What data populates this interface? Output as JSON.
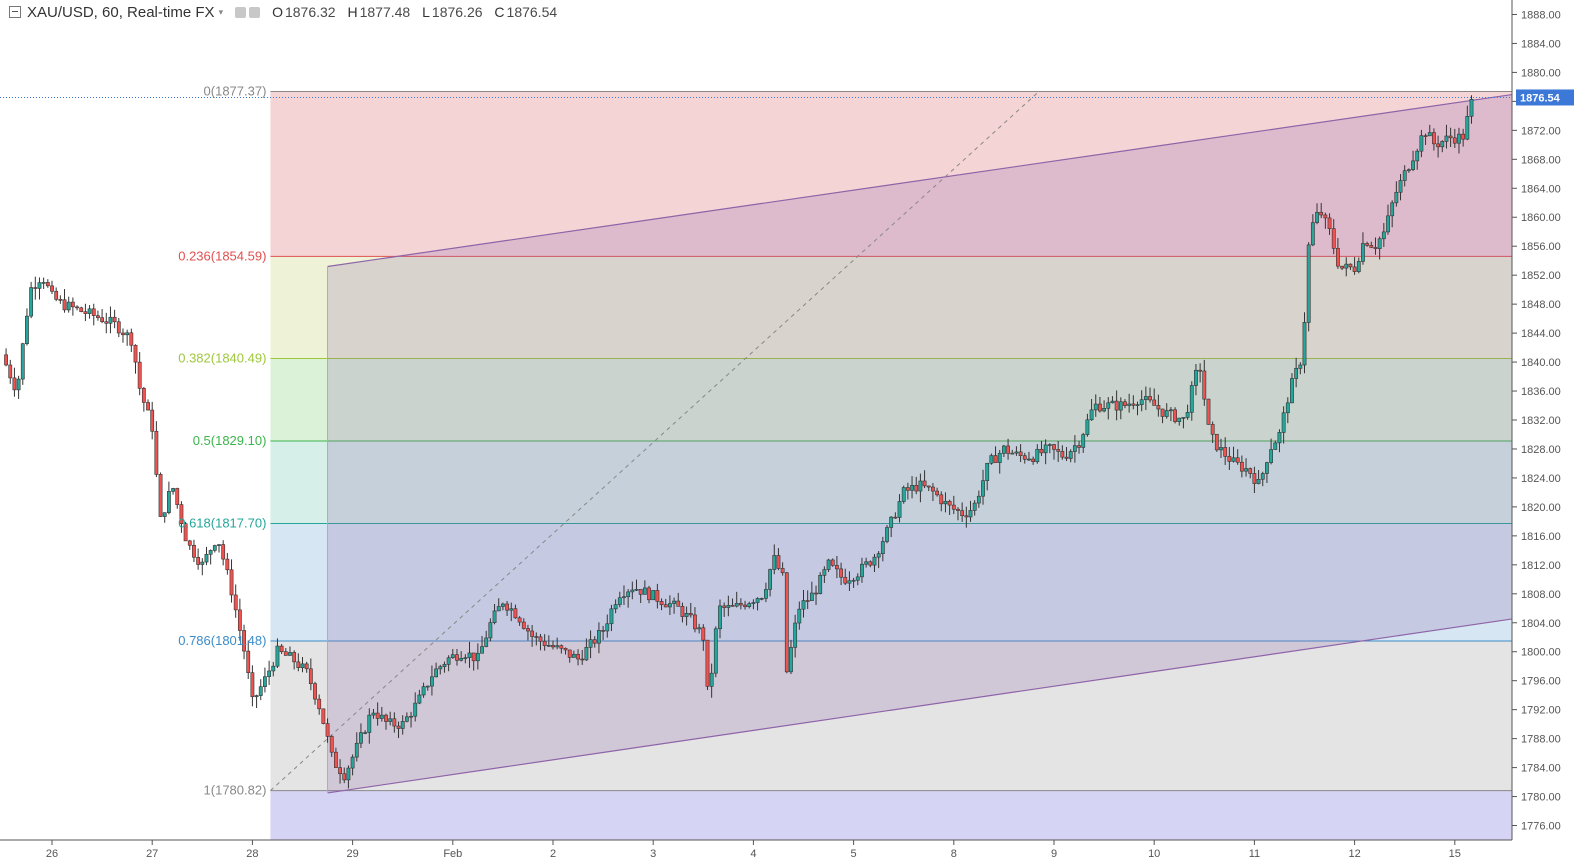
{
  "header": {
    "symbol": "XAU/USD, 60, Real-time FX",
    "ohlc": [
      {
        "key": "O",
        "value": "1876.32"
      },
      {
        "key": "H",
        "value": "1877.48"
      },
      {
        "key": "L",
        "value": "1876.26"
      },
      {
        "key": "C",
        "value": "1876.54"
      }
    ]
  },
  "colors": {
    "up": "#26a69a",
    "down": "#ef5350",
    "axis_text": "#555555",
    "last_price_bg": "#3c78d8",
    "channel": "#8e63a8"
  },
  "chart_data": {
    "type": "candlestick",
    "instrument": "XAU/USD",
    "timeframe": "60",
    "ylim": [
      1774,
      1890
    ],
    "y_ticks": [
      1776,
      1780,
      1784,
      1788,
      1792,
      1796,
      1800,
      1804,
      1808,
      1812,
      1816,
      1820,
      1824,
      1828,
      1832,
      1836,
      1840,
      1844,
      1848,
      1852,
      1856,
      1860,
      1864,
      1868,
      1872,
      1876,
      1880,
      1884,
      1888
    ],
    "x_ticks": [
      {
        "label": "26",
        "pos": 0.5
      },
      {
        "label": "27",
        "pos": 1.5
      },
      {
        "label": "28",
        "pos": 2.5
      },
      {
        "label": "29",
        "pos": 3.5
      },
      {
        "label": "Feb",
        "pos": 4.5
      },
      {
        "label": "2",
        "pos": 5.5
      },
      {
        "label": "3",
        "pos": 6.5
      },
      {
        "label": "4",
        "pos": 7.5
      },
      {
        "label": "5",
        "pos": 8.5
      },
      {
        "label": "8",
        "pos": 9.5
      },
      {
        "label": "9",
        "pos": 10.5
      },
      {
        "label": "10",
        "pos": 11.5
      },
      {
        "label": "11",
        "pos": 12.5
      },
      {
        "label": "12",
        "pos": 13.5
      },
      {
        "label": "15",
        "pos": 14.5
      }
    ],
    "last_price": 1876.54,
    "last_price_label": "1876.54",
    "fibonacci": {
      "high": 1877.37,
      "low": 1780.82,
      "start_x": 2.68,
      "end_x": 15.6,
      "levels": [
        {
          "label": "0(1877.37)",
          "price": 1877.37,
          "color": "#888888"
        },
        {
          "label": "0.236(1854.59)",
          "price": 1854.59,
          "color": "#e05050"
        },
        {
          "label": "0.382(1840.49)",
          "price": 1840.49,
          "color": "#9ec83c"
        },
        {
          "label": "0.5(1829.10)",
          "price": 1829.1,
          "color": "#3cb44b"
        },
        {
          "label": "0.618(1817.70)",
          "price": 1817.7,
          "color": "#26a69a"
        },
        {
          "label": "0.786(1801.48)",
          "price": 1801.48,
          "color": "#3c8cc8"
        },
        {
          "label": "1(1780.82)",
          "price": 1780.82,
          "color": "#888888"
        }
      ]
    },
    "channel": {
      "upper": [
        {
          "x": 3.25,
          "y": 1853.2
        },
        {
          "x": 15.6,
          "y": 1878.0
        }
      ],
      "lower": [
        {
          "x": 3.25,
          "y": 1780.5
        },
        {
          "x": 15.6,
          "y": 1805.6
        }
      ]
    },
    "trend_dashed": [
      {
        "x": 2.68,
        "y": 1780.82
      },
      {
        "x": 10.35,
        "y": 1877.37
      }
    ],
    "price_path": [
      [
        0.0,
        1841
      ],
      [
        0.15,
        1836
      ],
      [
        0.28,
        1850
      ],
      [
        0.4,
        1852
      ],
      [
        0.5,
        1849
      ],
      [
        0.6,
        1848
      ],
      [
        0.8,
        1847
      ],
      [
        1.0,
        1846
      ],
      [
        1.15,
        1845
      ],
      [
        1.3,
        1843
      ],
      [
        1.38,
        1836
      ],
      [
        1.5,
        1831
      ],
      [
        1.58,
        1818
      ],
      [
        1.7,
        1823
      ],
      [
        1.85,
        1815
      ],
      [
        2.0,
        1812
      ],
      [
        2.15,
        1816
      ],
      [
        2.3,
        1808
      ],
      [
        2.42,
        1800
      ],
      [
        2.5,
        1793
      ],
      [
        2.62,
        1796
      ],
      [
        2.75,
        1800
      ],
      [
        2.9,
        1799
      ],
      [
        3.05,
        1797
      ],
      [
        3.18,
        1792
      ],
      [
        3.3,
        1785
      ],
      [
        3.42,
        1783
      ],
      [
        3.55,
        1787
      ],
      [
        3.7,
        1792
      ],
      [
        3.85,
        1790
      ],
      [
        4.0,
        1790
      ],
      [
        4.15,
        1793
      ],
      [
        4.3,
        1797
      ],
      [
        4.45,
        1799
      ],
      [
        4.6,
        1800
      ],
      [
        4.75,
        1799
      ],
      [
        4.88,
        1804
      ],
      [
        5.0,
        1807
      ],
      [
        5.15,
        1805
      ],
      [
        5.3,
        1802
      ],
      [
        5.45,
        1801
      ],
      [
        5.6,
        1800
      ],
      [
        5.75,
        1799
      ],
      [
        5.88,
        1801
      ],
      [
        6.0,
        1803
      ],
      [
        6.15,
        1808
      ],
      [
        6.3,
        1809
      ],
      [
        6.45,
        1808
      ],
      [
        6.6,
        1807
      ],
      [
        6.75,
        1806
      ],
      [
        6.9,
        1804
      ],
      [
        7.0,
        1802
      ],
      [
        7.05,
        1793
      ],
      [
        7.15,
        1806
      ],
      [
        7.3,
        1806
      ],
      [
        7.45,
        1807
      ],
      [
        7.6,
        1808
      ],
      [
        7.7,
        1813
      ],
      [
        7.8,
        1810
      ],
      [
        7.83,
        1797
      ],
      [
        7.95,
        1806
      ],
      [
        8.1,
        1808
      ],
      [
        8.25,
        1812
      ],
      [
        8.4,
        1810
      ],
      [
        8.55,
        1811
      ],
      [
        8.7,
        1813
      ],
      [
        8.85,
        1817
      ],
      [
        9.0,
        1822
      ],
      [
        9.15,
        1823
      ],
      [
        9.3,
        1822
      ],
      [
        9.45,
        1820
      ],
      [
        9.6,
        1819
      ],
      [
        9.7,
        1820
      ],
      [
        9.85,
        1826
      ],
      [
        10.0,
        1828
      ],
      [
        10.15,
        1827
      ],
      [
        10.3,
        1827
      ],
      [
        10.45,
        1828
      ],
      [
        10.6,
        1827
      ],
      [
        10.75,
        1829
      ],
      [
        10.9,
        1834
      ],
      [
        11.05,
        1834
      ],
      [
        11.2,
        1834
      ],
      [
        11.35,
        1835
      ],
      [
        11.5,
        1834
      ],
      [
        11.6,
        1833
      ],
      [
        11.8,
        1832
      ],
      [
        11.95,
        1840
      ],
      [
        12.05,
        1830
      ],
      [
        12.15,
        1828
      ],
      [
        12.3,
        1826
      ],
      [
        12.45,
        1825
      ],
      [
        12.55,
        1823
      ],
      [
        12.65,
        1828
      ],
      [
        12.75,
        1830
      ],
      [
        12.85,
        1836
      ],
      [
        12.98,
        1841
      ],
      [
        13.05,
        1858
      ],
      [
        13.15,
        1861
      ],
      [
        13.25,
        1858
      ],
      [
        13.35,
        1853
      ],
      [
        13.5,
        1853
      ],
      [
        13.6,
        1857
      ],
      [
        13.7,
        1856
      ],
      [
        13.8,
        1858
      ],
      [
        13.9,
        1863
      ],
      [
        14.0,
        1866
      ],
      [
        14.1,
        1869
      ],
      [
        14.2,
        1872
      ],
      [
        14.3,
        1870
      ],
      [
        14.45,
        1871
      ],
      [
        14.58,
        1871
      ],
      [
        14.68,
        1876.54
      ]
    ]
  }
}
